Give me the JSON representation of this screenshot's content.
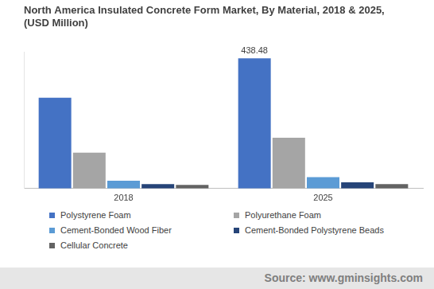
{
  "chart_data": {
    "type": "bar",
    "title": [
      "North America Insulated Concrete Form Market, By Material, 2018 & 2025,",
      "(USD Million)"
    ],
    "categories": [
      "2018",
      "2025"
    ],
    "series": [
      {
        "name": "Polystyrene Foam",
        "color": "#4472c4",
        "values": [
          306,
          438.48
        ],
        "value_labels": [
          null,
          "438.48"
        ]
      },
      {
        "name": "Polyurethane Foam",
        "color": "#a5a5a5",
        "values": [
          121,
          171
        ]
      },
      {
        "name": "Cement-Bonded Wood Fiber",
        "color": "#5b9bd5",
        "values": [
          26,
          38
        ]
      },
      {
        "name": "Cement-Bonded Polystyrene Beads",
        "color": "#264478",
        "values": [
          15,
          21
        ]
      },
      {
        "name": "Cellular Concrete",
        "color": "#636363",
        "values": [
          12,
          15
        ]
      }
    ],
    "ylim": [
      0,
      460
    ],
    "tick_labels": "x",
    "grid": false,
    "legend": "bottom",
    "source": "Source: www.gminsights.com"
  }
}
